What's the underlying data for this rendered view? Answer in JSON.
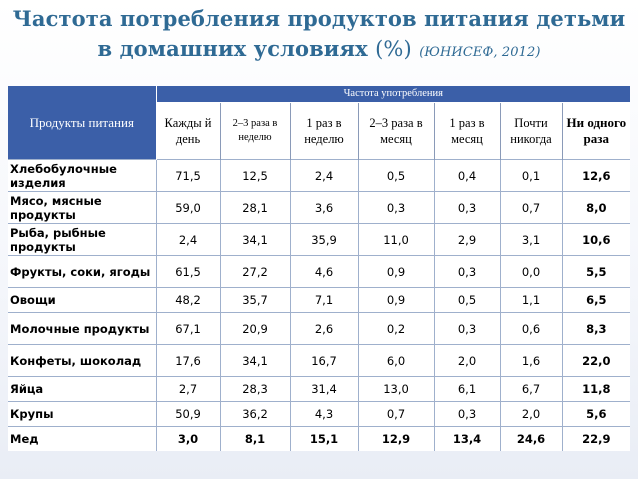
{
  "title": {
    "line1": "Частота потребления продуктов питания детьми",
    "line2_main": "в домашних условиях",
    "line2_pct": "(%)",
    "line2_source": "(ЮНИСЕФ, 2012)"
  },
  "table": {
    "product_header": "Продукты питания",
    "group_header": "Частота употребления",
    "columns": [
      "Кажды й день",
      "2–3 раза в неделю",
      "1 раз в неделю",
      "2–3 раза в месяц",
      "1 раз в месяц",
      "Почти никогда",
      "Ни одного раза"
    ],
    "rows": [
      {
        "product": "Хлебобулочные изделия",
        "values": [
          "71,5",
          "12,5",
          "2,4",
          "0,5",
          "0,4",
          "0,1",
          "12,6"
        ]
      },
      {
        "product": "Мясо, мясные продукты",
        "values": [
          "59,0",
          "28,1",
          "3,6",
          "0,3",
          "0,3",
          "0,7",
          "8,0"
        ]
      },
      {
        "product": "Рыба, рыбные продукты",
        "values": [
          "2,4",
          "34,1",
          "35,9",
          "11,0",
          "2,9",
          "3,1",
          "10,6"
        ]
      },
      {
        "product": "Фрукты, соки, ягоды",
        "values": [
          "61,5",
          "27,2",
          "4,6",
          "0,9",
          "0,3",
          "0,0",
          "5,5"
        ]
      },
      {
        "product": "Овощи",
        "values": [
          "48,2",
          "35,7",
          "7,1",
          "0,9",
          "0,5",
          "1,1",
          "6,5"
        ]
      },
      {
        "product": "Молочные продукты",
        "values": [
          "67,1",
          "20,9",
          "2,6",
          "0,2",
          "0,3",
          "0,6",
          "8,3"
        ]
      },
      {
        "product": "Конфеты, шоколад",
        "values": [
          "17,6",
          "34,1",
          "16,7",
          "6,0",
          "2,0",
          "1,6",
          "22,0"
        ]
      },
      {
        "product": "Яйца",
        "values": [
          "2,7",
          "28,3",
          "31,4",
          "13,0",
          "6,1",
          "6,7",
          "11,8"
        ]
      },
      {
        "product": "Крупы",
        "values": [
          "50,9",
          "36,2",
          "4,3",
          "0,7",
          "0,3",
          "2,0",
          "5,6"
        ]
      },
      {
        "product": "Мед",
        "values": [
          "3,0",
          "8,1",
          "15,1",
          "12,9",
          "13,4",
          "24,6",
          "22,9"
        ]
      }
    ]
  },
  "colors": {
    "title": "#2f6a94",
    "header_bg": "#3b5fa8",
    "grid": "#9fb0cc"
  }
}
